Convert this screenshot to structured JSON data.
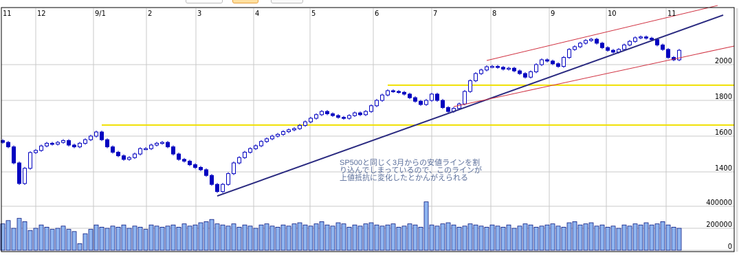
{
  "colors": {
    "up_candle_outline": "#0000c0",
    "down_candle_fill": "#0000c0",
    "volume_bar": "#8fb5f0",
    "volume_outline": "#0a1a80",
    "trendline": "#2a2a80",
    "channel_line": "#d03040",
    "resistance_line": "#f0e000",
    "grid": "#c8c8c8"
  },
  "chart_data": {
    "type": "candlestick",
    "x_tick_labels": [
      "11",
      "12",
      "9/1",
      "2",
      "3",
      "4",
      "5",
      "6",
      "7",
      "8",
      "9",
      "10",
      "11"
    ],
    "price_axis": {
      "ticks": [
        1400,
        1600,
        1800,
        2000
      ],
      "range": [
        1230,
        2320
      ],
      "position": "right"
    },
    "volume_axis": {
      "ticks": [
        0,
        200000,
        400000
      ],
      "range": [
        0,
        400000
      ],
      "position": "right"
    },
    "grid": true,
    "close": [
      1565,
      1540,
      1450,
      1335,
      1420,
      1508,
      1520,
      1545,
      1560,
      1555,
      1565,
      1575,
      1550,
      1540,
      1560,
      1580,
      1600,
      1623,
      1580,
      1540,
      1510,
      1490,
      1470,
      1480,
      1500,
      1530,
      1530,
      1550,
      1560,
      1565,
      1540,
      1500,
      1470,
      1460,
      1440,
      1425,
      1412,
      1380,
      1330,
      1290,
      1330,
      1390,
      1450,
      1480,
      1510,
      1530,
      1546,
      1570,
      1585,
      1600,
      1610,
      1625,
      1635,
      1642,
      1660,
      1680,
      1700,
      1720,
      1738,
      1725,
      1715,
      1705,
      1700,
      1715,
      1730,
      1720,
      1738,
      1770,
      1800,
      1830,
      1854,
      1850,
      1845,
      1835,
      1815,
      1795,
      1777,
      1800,
      1835,
      1800,
      1760,
      1738,
      1755,
      1780,
      1850,
      1910,
      1950,
      1970,
      1988,
      1990,
      1985,
      1975,
      1980,
      1965,
      1950,
      1930,
      1960,
      2000,
      2027,
      2020,
      2005,
      1990,
      2040,
      2085,
      2100,
      2120,
      2135,
      2142,
      2120,
      2095,
      2080,
      2070,
      2085,
      2110,
      2130,
      2150,
      2155,
      2148,
      2140,
      2110,
      2085,
      2040,
      2027,
      2080
    ],
    "volume": [
      240000,
      270000,
      200000,
      290000,
      260000,
      180000,
      200000,
      230000,
      210000,
      190000,
      200000,
      220000,
      190000,
      170000,
      60000,
      150000,
      190000,
      230000,
      210000,
      200000,
      220000,
      210000,
      230000,
      200000,
      220000,
      210000,
      190000,
      230000,
      220000,
      210000,
      220000,
      230000,
      210000,
      240000,
      220000,
      230000,
      250000,
      260000,
      280000,
      240000,
      230000,
      220000,
      240000,
      210000,
      230000,
      220000,
      200000,
      230000,
      240000,
      220000,
      210000,
      230000,
      220000,
      240000,
      250000,
      230000,
      220000,
      240000,
      260000,
      230000,
      220000,
      250000,
      240000,
      210000,
      230000,
      220000,
      240000,
      250000,
      230000,
      220000,
      230000,
      240000,
      210000,
      220000,
      240000,
      230000,
      210000,
      440000,
      230000,
      220000,
      240000,
      250000,
      230000,
      210000,
      220000,
      240000,
      230000,
      220000,
      210000,
      230000,
      220000,
      210000,
      230000,
      200000,
      220000,
      240000,
      230000,
      210000,
      220000,
      230000,
      240000,
      220000,
      210000,
      250000,
      260000,
      230000,
      240000,
      250000,
      220000,
      230000,
      210000,
      220000,
      200000,
      230000,
      220000,
      240000,
      230000,
      250000,
      230000,
      240000,
      260000,
      230000,
      210000,
      200000
    ],
    "lines": [
      {
        "kind": "support-trendline",
        "from": {
          "bar": 39,
          "price": 1265
        },
        "to": {
          "bar": 131,
          "price": 2277
        }
      },
      {
        "kind": "channel-upper",
        "from": {
          "bar": 88,
          "price": 2023
        },
        "to": {
          "bar": 130,
          "price": 2331
        }
      },
      {
        "kind": "channel-lower",
        "from": {
          "bar": 82,
          "price": 1765
        },
        "to": {
          "bar": 133,
          "price": 2104
        }
      },
      {
        "kind": "horizontal",
        "price": 1662,
        "from_bar": 18
      },
      {
        "kind": "horizontal",
        "price": 1885,
        "from_bar": 70
      }
    ],
    "annotation": [
      "SP500と同じく3月からの安値ラインを割",
      "り込んでしまっているので、このラインが",
      "上値抵抗に変化したとかんがえられる"
    ]
  }
}
